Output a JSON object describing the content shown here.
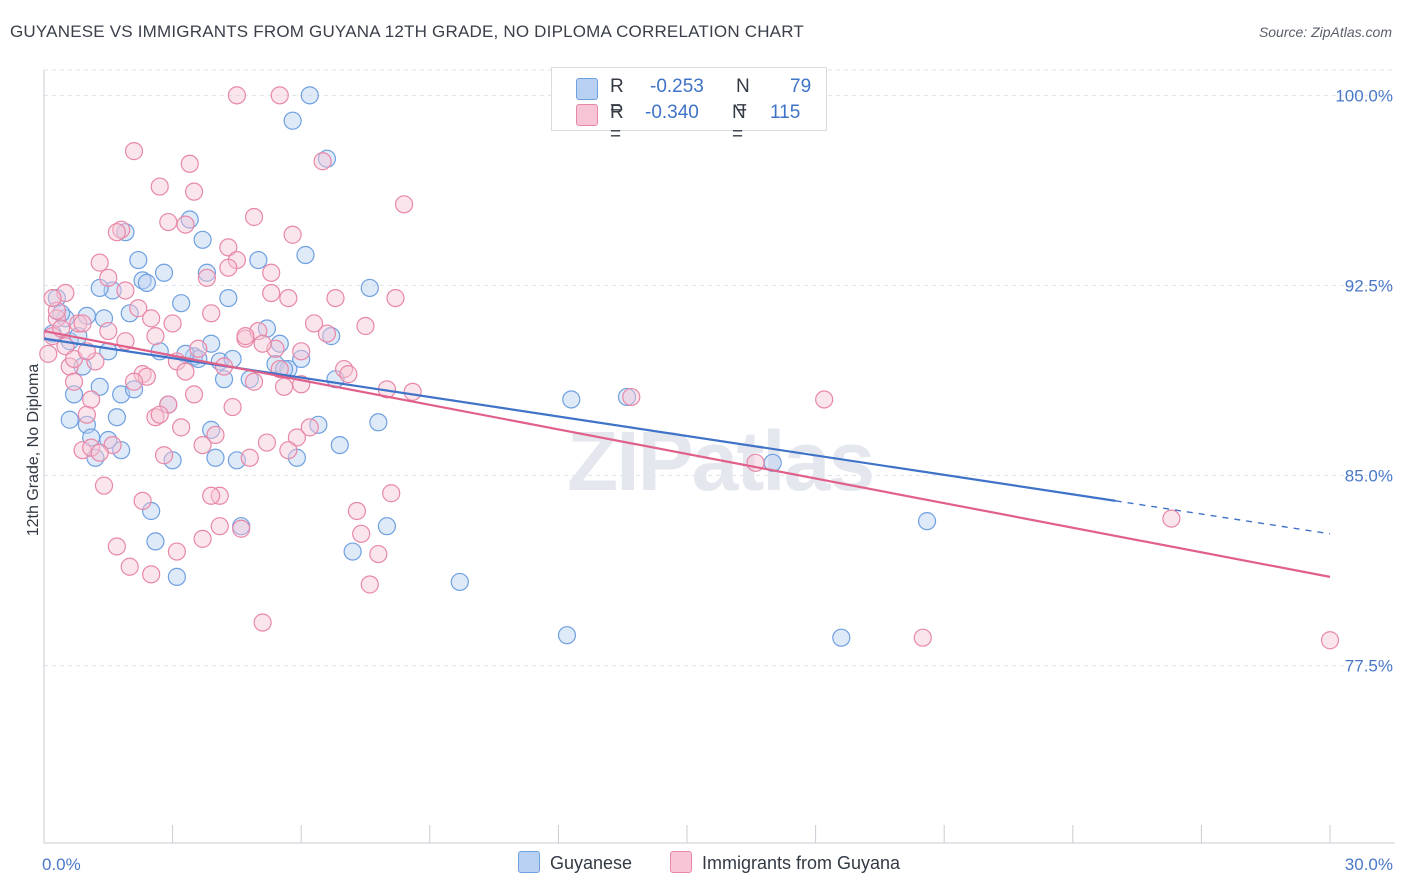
{
  "title": "GUYANESE VS IMMIGRANTS FROM GUYANA 12TH GRADE, NO DIPLOMA CORRELATION CHART",
  "source": "Source: ZipAtlas.com",
  "watermark": "ZIPatlas",
  "legend": {
    "rows": [
      {
        "r_label": "R =",
        "r_value": "-0.253",
        "n_label": "N =",
        "n_value": "79",
        "color": "#6fa0e0",
        "fill": "#b8d0f2"
      },
      {
        "r_label": "R =",
        "r_value": "-0.340",
        "n_label": "N =",
        "n_value": "115",
        "color": "#e888a8",
        "fill": "#f7c5d5"
      }
    ]
  },
  "bottom_legend": [
    {
      "label": "Guyanese",
      "fill": "#b8d0f2",
      "stroke": "#6fa0e0"
    },
    {
      "label": "Immigrants from Guyana",
      "fill": "#f7c5d5",
      "stroke": "#e888a8"
    }
  ],
  "chart_data": {
    "type": "scatter",
    "title": "GUYANESE VS IMMIGRANTS FROM GUYANA 12TH GRADE, NO DIPLOMA CORRELATION CHART",
    "xlabel": "",
    "ylabel": "12th Grade, No Diploma",
    "xlim": [
      0,
      30
    ],
    "ylim": [
      70.5,
      101
    ],
    "x_tick_labels": [
      "0.0%",
      "30.0%"
    ],
    "y_ticks": [
      77.5,
      85.0,
      92.5,
      100.0
    ],
    "y_tick_labels": [
      "77.5%",
      "85.0%",
      "92.5%",
      "100.0%"
    ],
    "grid": "horizontal dashed",
    "legend_position": "top-center",
    "colors": {
      "blue": "#3f73c7",
      "pink": "#e0608a"
    },
    "series": [
      {
        "name": "Guyanese",
        "color": "#6fa0e0",
        "fill": "#b8d0f2",
        "trend": {
          "x0": 0,
          "y0": 90.4,
          "x1": 25.0,
          "y1": 84.0,
          "dash_to_x": 30,
          "dash_to_y": 82.7
        },
        "points": [
          [
            0.3,
            92.0
          ],
          [
            0.5,
            91.2
          ],
          [
            0.6,
            90.3
          ],
          [
            0.7,
            88.2
          ],
          [
            0.8,
            90.5
          ],
          [
            0.9,
            89.3
          ],
          [
            1.0,
            87.0
          ],
          [
            1.1,
            86.5
          ],
          [
            1.2,
            85.7
          ],
          [
            1.3,
            88.5
          ],
          [
            1.4,
            91.2
          ],
          [
            1.5,
            86.4
          ],
          [
            1.6,
            92.3
          ],
          [
            1.7,
            87.3
          ],
          [
            1.8,
            88.2
          ],
          [
            1.9,
            94.6
          ],
          [
            2.2,
            93.5
          ],
          [
            2.3,
            92.7
          ],
          [
            2.5,
            83.6
          ],
          [
            2.6,
            82.4
          ],
          [
            2.7,
            89.9
          ],
          [
            2.8,
            93.0
          ],
          [
            2.9,
            87.8
          ],
          [
            3.0,
            85.6
          ],
          [
            3.1,
            81.0
          ],
          [
            3.2,
            91.8
          ],
          [
            3.4,
            95.1
          ],
          [
            3.5,
            89.7
          ],
          [
            3.6,
            89.6
          ],
          [
            3.7,
            94.3
          ],
          [
            3.8,
            93.0
          ],
          [
            3.9,
            90.2
          ],
          [
            4.0,
            85.7
          ],
          [
            4.1,
            89.5
          ],
          [
            4.2,
            88.8
          ],
          [
            4.3,
            92.0
          ],
          [
            4.5,
            85.6
          ],
          [
            4.6,
            83.0
          ],
          [
            4.8,
            88.8
          ],
          [
            5.0,
            93.5
          ],
          [
            5.2,
            90.8
          ],
          [
            5.4,
            89.4
          ],
          [
            5.5,
            90.2
          ],
          [
            5.7,
            89.2
          ],
          [
            5.8,
            99.0
          ],
          [
            5.9,
            85.7
          ],
          [
            6.0,
            89.6
          ],
          [
            6.1,
            93.7
          ],
          [
            6.2,
            100.0
          ],
          [
            6.4,
            87.0
          ],
          [
            6.6,
            97.5
          ],
          [
            6.7,
            90.5
          ],
          [
            6.8,
            88.8
          ],
          [
            6.9,
            86.2
          ],
          [
            7.2,
            82.0
          ],
          [
            7.6,
            92.4
          ],
          [
            7.8,
            87.1
          ],
          [
            8.0,
            83.0
          ],
          [
            9.7,
            80.8
          ],
          [
            12.2,
            78.7
          ],
          [
            12.3,
            88.0
          ],
          [
            13.6,
            88.1
          ],
          [
            17.0,
            85.5
          ],
          [
            18.6,
            78.6
          ],
          [
            20.6,
            83.2
          ],
          [
            0.2,
            90.6
          ],
          [
            0.4,
            91.4
          ],
          [
            1.0,
            91.3
          ],
          [
            1.3,
            92.4
          ],
          [
            2.0,
            91.4
          ],
          [
            2.4,
            92.6
          ],
          [
            3.3,
            89.8
          ],
          [
            4.4,
            89.6
          ],
          [
            5.6,
            89.2
          ],
          [
            1.8,
            86.0
          ],
          [
            0.6,
            87.2
          ],
          [
            2.1,
            88.4
          ],
          [
            3.9,
            86.8
          ],
          [
            1.5,
            89.9
          ]
        ]
      },
      {
        "name": "Immigrants from Guyana",
        "color": "#e888a8",
        "fill": "#f7c5d5",
        "trend": {
          "x0": 0,
          "y0": 90.7,
          "x1": 30,
          "y1": 81.0
        },
        "points": [
          [
            0.1,
            89.8
          ],
          [
            0.2,
            90.5
          ],
          [
            0.3,
            91.2
          ],
          [
            0.4,
            90.8
          ],
          [
            0.5,
            92.2
          ],
          [
            0.6,
            89.3
          ],
          [
            0.7,
            88.7
          ],
          [
            0.8,
            91.0
          ],
          [
            0.9,
            86.0
          ],
          [
            1.0,
            87.4
          ],
          [
            1.1,
            86.1
          ],
          [
            1.2,
            89.5
          ],
          [
            1.3,
            93.4
          ],
          [
            1.4,
            84.6
          ],
          [
            1.5,
            92.8
          ],
          [
            1.6,
            86.2
          ],
          [
            1.7,
            82.2
          ],
          [
            1.8,
            94.7
          ],
          [
            1.9,
            90.3
          ],
          [
            2.0,
            81.4
          ],
          [
            2.1,
            97.8
          ],
          [
            2.2,
            91.6
          ],
          [
            2.3,
            89.0
          ],
          [
            2.4,
            88.9
          ],
          [
            2.5,
            81.1
          ],
          [
            2.6,
            87.3
          ],
          [
            2.7,
            96.4
          ],
          [
            2.8,
            85.8
          ],
          [
            2.9,
            87.8
          ],
          [
            3.0,
            91.0
          ],
          [
            3.1,
            89.5
          ],
          [
            3.2,
            86.9
          ],
          [
            3.3,
            94.9
          ],
          [
            3.4,
            97.3
          ],
          [
            3.5,
            88.2
          ],
          [
            3.6,
            90.0
          ],
          [
            3.7,
            82.5
          ],
          [
            3.8,
            92.8
          ],
          [
            3.9,
            91.4
          ],
          [
            4.0,
            86.6
          ],
          [
            4.1,
            84.2
          ],
          [
            4.2,
            89.3
          ],
          [
            4.3,
            94.0
          ],
          [
            4.4,
            87.7
          ],
          [
            4.5,
            93.5
          ],
          [
            4.6,
            82.9
          ],
          [
            4.7,
            90.4
          ],
          [
            4.8,
            85.7
          ],
          [
            4.9,
            95.2
          ],
          [
            5.0,
            90.7
          ],
          [
            5.1,
            79.2
          ],
          [
            5.2,
            86.3
          ],
          [
            5.3,
            93.0
          ],
          [
            5.4,
            90.0
          ],
          [
            5.5,
            100.0
          ],
          [
            5.6,
            88.5
          ],
          [
            5.7,
            92.0
          ],
          [
            5.8,
            94.5
          ],
          [
            5.9,
            86.5
          ],
          [
            6.0,
            89.9
          ],
          [
            6.2,
            86.9
          ],
          [
            6.5,
            97.4
          ],
          [
            6.6,
            90.6
          ],
          [
            6.8,
            92.0
          ],
          [
            7.0,
            89.2
          ],
          [
            7.3,
            83.6
          ],
          [
            7.4,
            82.7
          ],
          [
            7.6,
            80.7
          ],
          [
            7.8,
            81.9
          ],
          [
            8.0,
            88.4
          ],
          [
            8.2,
            92.0
          ],
          [
            8.4,
            95.7
          ],
          [
            8.6,
            88.3
          ],
          [
            0.3,
            91.5
          ],
          [
            0.5,
            90.1
          ],
          [
            0.7,
            89.6
          ],
          [
            0.9,
            91.0
          ],
          [
            1.1,
            88.0
          ],
          [
            1.3,
            85.9
          ],
          [
            1.5,
            90.7
          ],
          [
            1.7,
            94.6
          ],
          [
            1.9,
            92.3
          ],
          [
            2.1,
            88.7
          ],
          [
            2.3,
            84.0
          ],
          [
            2.5,
            91.2
          ],
          [
            2.7,
            87.4
          ],
          [
            2.9,
            95.0
          ],
          [
            3.1,
            82.0
          ],
          [
            3.3,
            89.1
          ],
          [
            3.5,
            96.2
          ],
          [
            3.7,
            86.2
          ],
          [
            3.9,
            84.2
          ],
          [
            4.1,
            83.0
          ],
          [
            4.3,
            93.2
          ],
          [
            4.5,
            100.0
          ],
          [
            4.7,
            90.5
          ],
          [
            4.9,
            88.7
          ],
          [
            5.1,
            90.2
          ],
          [
            5.3,
            92.2
          ],
          [
            5.5,
            89.2
          ],
          [
            5.7,
            86.0
          ],
          [
            6.0,
            88.6
          ],
          [
            6.3,
            91.0
          ],
          [
            7.1,
            89.0
          ],
          [
            7.5,
            90.9
          ],
          [
            8.1,
            84.3
          ],
          [
            13.7,
            88.1
          ],
          [
            16.6,
            85.5
          ],
          [
            18.2,
            88.0
          ],
          [
            20.5,
            78.6
          ],
          [
            26.3,
            83.3
          ],
          [
            30.0,
            78.5
          ],
          [
            0.2,
            92.0
          ],
          [
            1.0,
            89.9
          ],
          [
            2.6,
            90.5
          ]
        ]
      }
    ]
  }
}
